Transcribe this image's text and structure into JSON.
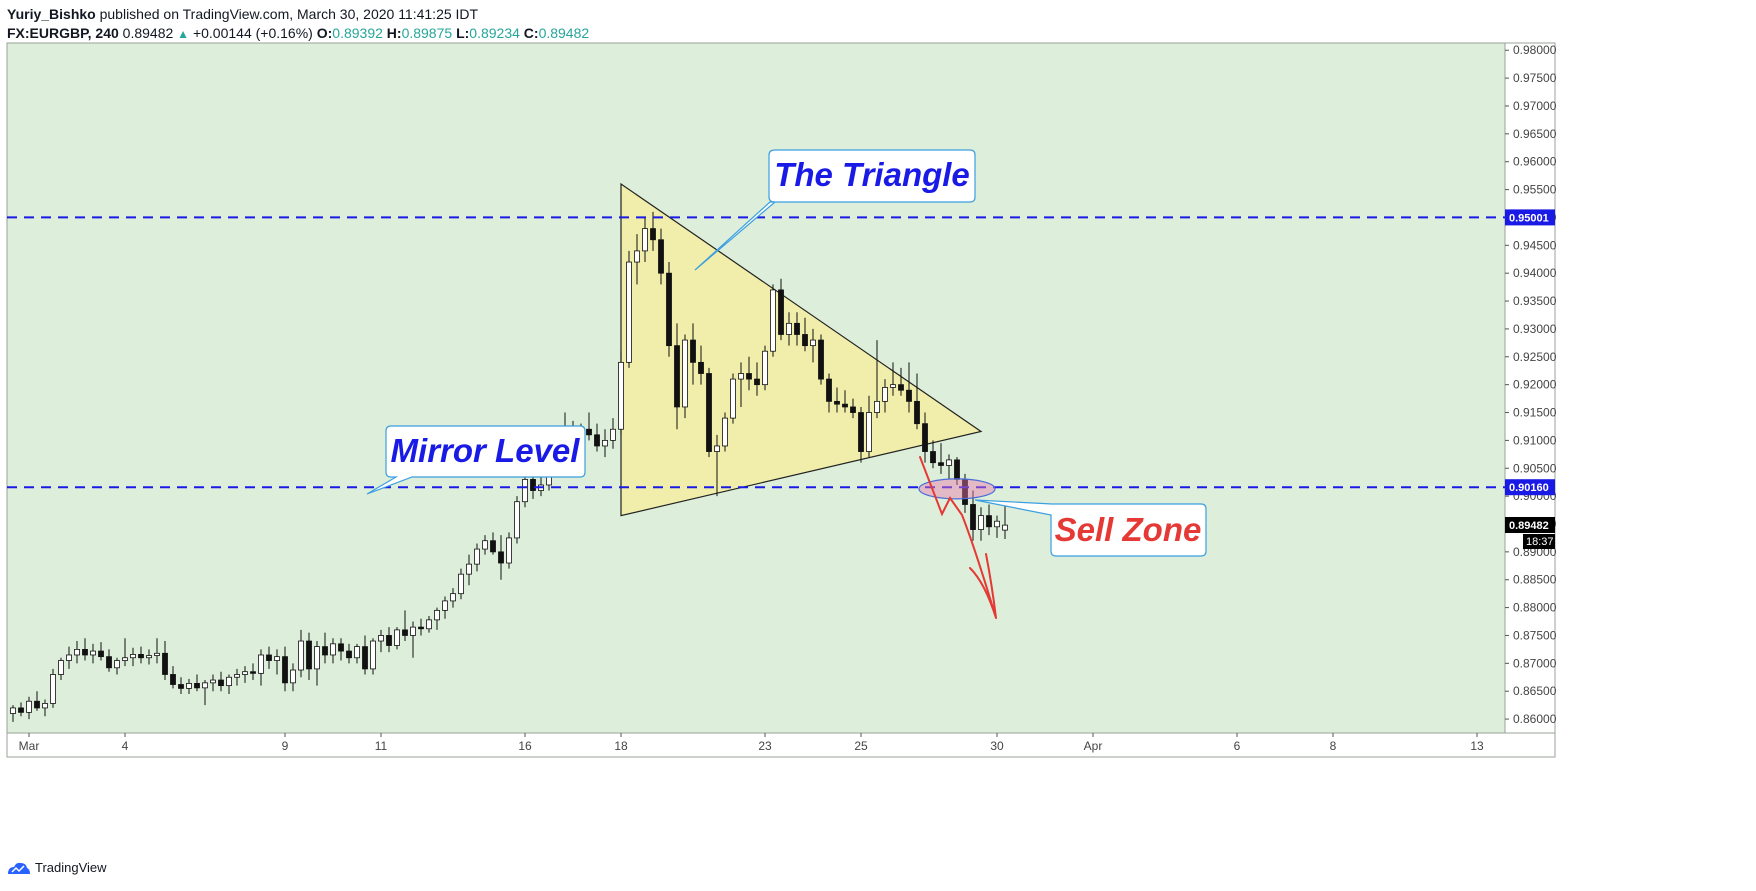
{
  "header": {
    "author": "Yuriy_Bishko",
    "published_text": "published on TradingView.com, March 30, 2020 11:41:25 IDT",
    "symbol": "FX:EURGBP, 240",
    "last": "0.89482",
    "change": "+0.00144 (+0.16%)",
    "open_label": "O:",
    "open": "0.89392",
    "high_label": "H:",
    "high": "0.89875",
    "low_label": "L:",
    "low": "0.89234",
    "close_label": "C:",
    "close": "0.89482"
  },
  "footer": {
    "brand": "TradingView"
  },
  "colors": {
    "background": "#ddeeda",
    "triangle_fill": "#f0eeaa",
    "level_line": "#1a1ae6",
    "annotation_blue": "#1a1ae6",
    "annotation_red": "#e53935",
    "price_badge": "#1a1ae6",
    "current_badge": "#000000"
  },
  "chart_data": {
    "type": "candlestick",
    "symbol": "EURGBP",
    "timeframe": "240",
    "ylim": [
      0.8575,
      0.9813
    ],
    "y_ticks": [
      "0.98000",
      "0.97500",
      "0.97000",
      "0.96500",
      "0.96000",
      "0.95500",
      "0.95000",
      "0.94500",
      "0.94000",
      "0.93500",
      "0.93000",
      "0.92500",
      "0.92000",
      "0.91500",
      "0.91000",
      "0.90500",
      "0.90000",
      "0.89500",
      "0.89000",
      "0.88500",
      "0.88000",
      "0.87500",
      "0.87000",
      "0.86500",
      "0.86000"
    ],
    "x_ticks": [
      {
        "label": "Mar",
        "idx": 2
      },
      {
        "label": "4",
        "idx": 14
      },
      {
        "label": "9",
        "idx": 34
      },
      {
        "label": "11",
        "idx": 46
      },
      {
        "label": "16",
        "idx": 64
      },
      {
        "label": "18",
        "idx": 76
      },
      {
        "label": "23",
        "idx": 94
      },
      {
        "label": "25",
        "idx": 106
      },
      {
        "label": "30",
        "idx": 123
      },
      {
        "label": "Apr",
        "idx": 135
      },
      {
        "label": "6",
        "idx": 153
      },
      {
        "label": "8",
        "idx": 165
      },
      {
        "label": "13",
        "idx": 183
      }
    ],
    "candles": [
      [
        0.861,
        0.8625,
        0.8595,
        0.862
      ],
      [
        0.862,
        0.863,
        0.8605,
        0.8612
      ],
      [
        0.8612,
        0.864,
        0.86,
        0.8632
      ],
      [
        0.8632,
        0.865,
        0.8615,
        0.862
      ],
      [
        0.862,
        0.8635,
        0.8605,
        0.8628
      ],
      [
        0.8628,
        0.869,
        0.862,
        0.868
      ],
      [
        0.868,
        0.871,
        0.867,
        0.8705
      ],
      [
        0.8705,
        0.873,
        0.869,
        0.8715
      ],
      [
        0.8715,
        0.874,
        0.87,
        0.8725
      ],
      [
        0.8725,
        0.8745,
        0.8705,
        0.8715
      ],
      [
        0.8715,
        0.8735,
        0.87,
        0.8722
      ],
      [
        0.8722,
        0.8738,
        0.8705,
        0.8712
      ],
      [
        0.8712,
        0.8725,
        0.8685,
        0.8692
      ],
      [
        0.8692,
        0.871,
        0.868,
        0.8705
      ],
      [
        0.8705,
        0.8745,
        0.8695,
        0.871
      ],
      [
        0.871,
        0.8728,
        0.8695,
        0.8716
      ],
      [
        0.8716,
        0.873,
        0.87,
        0.871
      ],
      [
        0.871,
        0.8725,
        0.8698,
        0.8714
      ],
      [
        0.8714,
        0.8745,
        0.87,
        0.8718
      ],
      [
        0.8718,
        0.874,
        0.867,
        0.868
      ],
      [
        0.868,
        0.8695,
        0.8655,
        0.8662
      ],
      [
        0.8662,
        0.8675,
        0.8645,
        0.8655
      ],
      [
        0.8655,
        0.8672,
        0.8645,
        0.8664
      ],
      [
        0.8664,
        0.868,
        0.865,
        0.8656
      ],
      [
        0.8656,
        0.867,
        0.8625,
        0.8665
      ],
      [
        0.8665,
        0.868,
        0.865,
        0.867
      ],
      [
        0.867,
        0.8685,
        0.865,
        0.866
      ],
      [
        0.866,
        0.868,
        0.8645,
        0.8675
      ],
      [
        0.8675,
        0.869,
        0.866,
        0.868
      ],
      [
        0.868,
        0.8695,
        0.8665,
        0.8685
      ],
      [
        0.8685,
        0.87,
        0.867,
        0.8682
      ],
      [
        0.8682,
        0.8725,
        0.866,
        0.8715
      ],
      [
        0.8715,
        0.873,
        0.869,
        0.8705
      ],
      [
        0.8705,
        0.8725,
        0.868,
        0.8712
      ],
      [
        0.8712,
        0.873,
        0.865,
        0.8665
      ],
      [
        0.8665,
        0.87,
        0.865,
        0.8688
      ],
      [
        0.8688,
        0.876,
        0.8675,
        0.874
      ],
      [
        0.874,
        0.8755,
        0.867,
        0.869
      ],
      [
        0.869,
        0.874,
        0.866,
        0.873
      ],
      [
        0.873,
        0.8755,
        0.87,
        0.8715
      ],
      [
        0.8715,
        0.8745,
        0.87,
        0.8735
      ],
      [
        0.8735,
        0.8745,
        0.8705,
        0.8722
      ],
      [
        0.8722,
        0.8735,
        0.87,
        0.871
      ],
      [
        0.871,
        0.8735,
        0.87,
        0.873
      ],
      [
        0.873,
        0.875,
        0.868,
        0.869
      ],
      [
        0.869,
        0.8745,
        0.868,
        0.874
      ],
      [
        0.874,
        0.876,
        0.872,
        0.875
      ],
      [
        0.875,
        0.8765,
        0.872,
        0.8732
      ],
      [
        0.8732,
        0.8765,
        0.8725,
        0.876
      ],
      [
        0.876,
        0.8795,
        0.874,
        0.875
      ],
      [
        0.875,
        0.8775,
        0.871,
        0.8765
      ],
      [
        0.8765,
        0.878,
        0.875,
        0.8762
      ],
      [
        0.8762,
        0.8785,
        0.8755,
        0.8778
      ],
      [
        0.8778,
        0.88,
        0.876,
        0.8795
      ],
      [
        0.8795,
        0.882,
        0.878,
        0.8812
      ],
      [
        0.8812,
        0.8835,
        0.88,
        0.8825
      ],
      [
        0.8825,
        0.887,
        0.8815,
        0.886
      ],
      [
        0.886,
        0.8895,
        0.884,
        0.8878
      ],
      [
        0.8878,
        0.8915,
        0.8865,
        0.8905
      ],
      [
        0.8905,
        0.893,
        0.8895,
        0.892
      ],
      [
        0.892,
        0.8935,
        0.8895,
        0.89
      ],
      [
        0.89,
        0.893,
        0.885,
        0.888
      ],
      [
        0.888,
        0.8935,
        0.887,
        0.8925
      ],
      [
        0.8925,
        0.9,
        0.8915,
        0.899
      ],
      [
        0.899,
        0.904,
        0.898,
        0.903
      ],
      [
        0.903,
        0.905,
        0.8995,
        0.901
      ],
      [
        0.901,
        0.904,
        0.9,
        0.902
      ],
      [
        0.902,
        0.908,
        0.901,
        0.9065
      ],
      [
        0.9065,
        0.9115,
        0.905,
        0.91
      ],
      [
        0.91,
        0.915,
        0.908,
        0.911
      ],
      [
        0.911,
        0.9135,
        0.909,
        0.91
      ],
      [
        0.91,
        0.913,
        0.9085,
        0.912
      ],
      [
        0.912,
        0.915,
        0.91,
        0.911
      ],
      [
        0.911,
        0.913,
        0.908,
        0.909
      ],
      [
        0.909,
        0.912,
        0.907,
        0.91
      ],
      [
        0.91,
        0.914,
        0.9085,
        0.912
      ],
      [
        0.912,
        0.926,
        0.911,
        0.924
      ],
      [
        0.924,
        0.944,
        0.923,
        0.942
      ],
      [
        0.942,
        0.947,
        0.938,
        0.944
      ],
      [
        0.944,
        0.95,
        0.942,
        0.948
      ],
      [
        0.948,
        0.951,
        0.944,
        0.946
      ],
      [
        0.946,
        0.948,
        0.938,
        0.94
      ],
      [
        0.94,
        0.942,
        0.925,
        0.927
      ],
      [
        0.927,
        0.931,
        0.912,
        0.916
      ],
      [
        0.916,
        0.929,
        0.914,
        0.928
      ],
      [
        0.928,
        0.931,
        0.92,
        0.924
      ],
      [
        0.924,
        0.927,
        0.92,
        0.922
      ],
      [
        0.922,
        0.923,
        0.907,
        0.908
      ],
      [
        0.908,
        0.911,
        0.9,
        0.909
      ],
      [
        0.909,
        0.915,
        0.908,
        0.914
      ],
      [
        0.914,
        0.922,
        0.913,
        0.921
      ],
      [
        0.921,
        0.924,
        0.916,
        0.922
      ],
      [
        0.922,
        0.925,
        0.919,
        0.921
      ],
      [
        0.921,
        0.924,
        0.918,
        0.92
      ],
      [
        0.92,
        0.927,
        0.919,
        0.926
      ],
      [
        0.926,
        0.938,
        0.925,
        0.937
      ],
      [
        0.937,
        0.939,
        0.928,
        0.929
      ],
      [
        0.929,
        0.933,
        0.927,
        0.931
      ],
      [
        0.931,
        0.933,
        0.927,
        0.929
      ],
      [
        0.929,
        0.932,
        0.926,
        0.927
      ],
      [
        0.927,
        0.93,
        0.924,
        0.928
      ],
      [
        0.928,
        0.929,
        0.92,
        0.921
      ],
      [
        0.921,
        0.922,
        0.915,
        0.917
      ],
      [
        0.917,
        0.9195,
        0.915,
        0.9165
      ],
      [
        0.9165,
        0.919,
        0.915,
        0.916
      ],
      [
        0.916,
        0.9175,
        0.914,
        0.915
      ],
      [
        0.915,
        0.916,
        0.906,
        0.908
      ],
      [
        0.908,
        0.918,
        0.907,
        0.915
      ],
      [
        0.915,
        0.928,
        0.914,
        0.917
      ],
      [
        0.917,
        0.921,
        0.915,
        0.9195
      ],
      [
        0.9195,
        0.924,
        0.918,
        0.92
      ],
      [
        0.92,
        0.923,
        0.918,
        0.919
      ],
      [
        0.919,
        0.924,
        0.915,
        0.917
      ],
      [
        0.917,
        0.922,
        0.912,
        0.913
      ],
      [
        0.913,
        0.915,
        0.906,
        0.908
      ],
      [
        0.908,
        0.91,
        0.905,
        0.906
      ],
      [
        0.906,
        0.9095,
        0.904,
        0.9055
      ],
      [
        0.9055,
        0.9075,
        0.903,
        0.9065
      ],
      [
        0.9065,
        0.907,
        0.902,
        0.903
      ],
      [
        0.903,
        0.904,
        0.897,
        0.8985
      ],
      [
        0.8985,
        0.901,
        0.892,
        0.894
      ],
      [
        0.894,
        0.898,
        0.892,
        0.8965
      ],
      [
        0.8965,
        0.8985,
        0.893,
        0.8945
      ],
      [
        0.8945,
        0.8965,
        0.8925,
        0.8955
      ],
      [
        0.8939,
        0.8988,
        0.8923,
        0.8948
      ]
    ],
    "levels": [
      {
        "price": 0.95001,
        "label": "0.95001"
      },
      {
        "price": 0.9016,
        "label": "0.90160"
      }
    ],
    "current_price": {
      "label": "0.89482",
      "price": 0.89482,
      "countdown": "18:37"
    },
    "triangle": {
      "points": [
        [
          76,
          0.956
        ],
        [
          76,
          0.8965
        ],
        [
          121,
          0.9116
        ]
      ]
    },
    "annotations": [
      {
        "text": "The Triangle",
        "color": "blue"
      },
      {
        "text": "Mirror Level",
        "color": "blue"
      },
      {
        "text": "Sell Zone",
        "color": "red"
      }
    ]
  }
}
